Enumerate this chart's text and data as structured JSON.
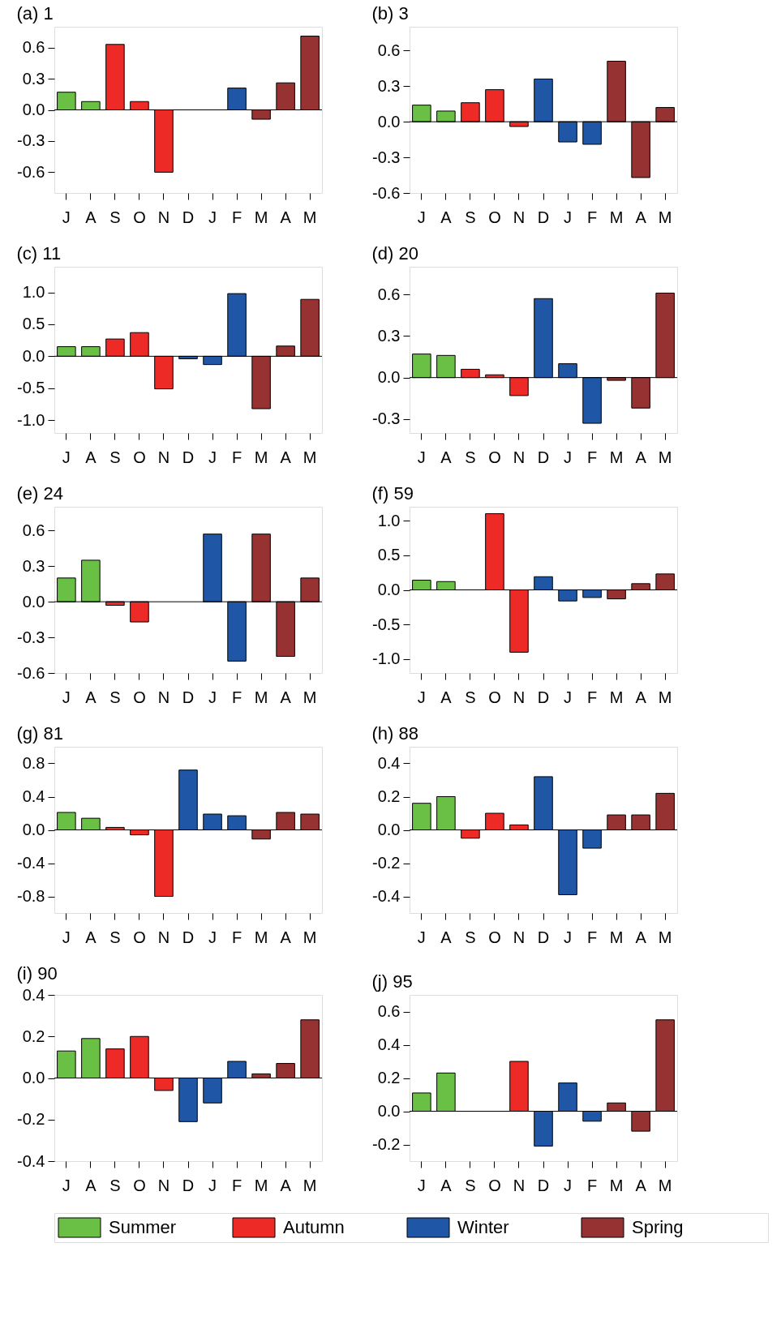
{
  "chart_data": [
    {
      "type": "bar",
      "title": "(a) 1",
      "categories": [
        "J",
        "A",
        "S",
        "O",
        "N",
        "D",
        "J",
        "F",
        "M",
        "A",
        "M"
      ],
      "ylim": [
        -0.8,
        0.8
      ],
      "yticks": [
        {
          "value": -0.6,
          "label": "-0.6"
        },
        {
          "value": -0.3,
          "label": "-0.3"
        },
        {
          "value": 0,
          "label": "0.0"
        },
        {
          "value": 0.3,
          "label": "0.3"
        },
        {
          "value": 0.6,
          "label": "0.6"
        }
      ],
      "grid": false,
      "ref_lines": [
        {
          "axis": "y",
          "value": 0
        }
      ],
      "series": [
        {
          "color": "#6abf45",
          "values": [
            0.17,
            0.08,
            null,
            null,
            null,
            null,
            null,
            null,
            null,
            null,
            null
          ]
        },
        {
          "color": "#ee2a27",
          "values": [
            null,
            null,
            0.63,
            0.08,
            -0.6,
            null,
            null,
            null,
            null,
            null,
            null
          ]
        },
        {
          "color": "#1f57a6",
          "values": [
            null,
            null,
            null,
            null,
            null,
            null,
            null,
            0.21,
            null,
            null,
            null
          ]
        },
        {
          "color": "#963232",
          "values": [
            null,
            null,
            null,
            null,
            null,
            null,
            null,
            null,
            -0.09,
            0.26,
            0.71
          ]
        }
      ]
    },
    {
      "type": "bar",
      "title": "(b) 3",
      "categories": [
        "J",
        "A",
        "S",
        "O",
        "N",
        "D",
        "J",
        "F",
        "M",
        "A",
        "M"
      ],
      "ylim": [
        -0.6,
        0.8
      ],
      "yticks": [
        {
          "value": -0.6,
          "label": "-0.6"
        },
        {
          "value": -0.3,
          "label": "-0.3"
        },
        {
          "value": 0,
          "label": "0.0"
        },
        {
          "value": 0.3,
          "label": "0.3"
        },
        {
          "value": 0.6,
          "label": "0.6"
        }
      ],
      "grid": false,
      "ref_lines": [
        {
          "axis": "y",
          "value": 0
        }
      ],
      "series": [
        {
          "color": "#6abf45",
          "values": [
            0.14,
            0.09,
            null,
            null,
            null,
            null,
            null,
            null,
            null,
            null,
            null
          ]
        },
        {
          "color": "#ee2a27",
          "values": [
            null,
            null,
            0.16,
            0.27,
            -0.04,
            null,
            null,
            null,
            null,
            null,
            null
          ]
        },
        {
          "color": "#1f57a6",
          "values": [
            null,
            null,
            null,
            null,
            null,
            0.36,
            -0.17,
            -0.19,
            null,
            null,
            null
          ]
        },
        {
          "color": "#963232",
          "values": [
            null,
            null,
            null,
            null,
            null,
            null,
            null,
            null,
            0.51,
            -0.47,
            0.12
          ]
        }
      ]
    },
    {
      "type": "bar",
      "title": "(c) 11",
      "categories": [
        "J",
        "A",
        "S",
        "O",
        "N",
        "D",
        "J",
        "F",
        "M",
        "A",
        "M"
      ],
      "ylim": [
        -1.2,
        1.4
      ],
      "yticks": [
        {
          "value": -1,
          "label": "-1.0"
        },
        {
          "value": -0.5,
          "label": "-0.5"
        },
        {
          "value": 0,
          "label": "0.0"
        },
        {
          "value": 0.5,
          "label": "0.5"
        },
        {
          "value": 1,
          "label": "1.0"
        }
      ],
      "grid": false,
      "ref_lines": [
        {
          "axis": "y",
          "value": 0
        }
      ],
      "series": [
        {
          "color": "#6abf45",
          "values": [
            0.15,
            0.15,
            null,
            null,
            null,
            null,
            null,
            null,
            null,
            null,
            null
          ]
        },
        {
          "color": "#ee2a27",
          "values": [
            null,
            null,
            0.27,
            0.37,
            -0.51,
            null,
            null,
            null,
            null,
            null,
            null
          ]
        },
        {
          "color": "#1f57a6",
          "values": [
            null,
            null,
            null,
            null,
            null,
            -0.04,
            -0.13,
            0.98,
            null,
            null,
            null
          ]
        },
        {
          "color": "#963232",
          "values": [
            null,
            null,
            null,
            null,
            null,
            null,
            null,
            null,
            -0.82,
            0.16,
            0.89
          ]
        }
      ]
    },
    {
      "type": "bar",
      "title": "(d) 20",
      "categories": [
        "J",
        "A",
        "S",
        "O",
        "N",
        "D",
        "J",
        "F",
        "M",
        "A",
        "M"
      ],
      "ylim": [
        -0.4,
        0.8
      ],
      "yticks": [
        {
          "value": -0.3,
          "label": "-0.3"
        },
        {
          "value": 0,
          "label": "0.0"
        },
        {
          "value": 0.3,
          "label": "0.3"
        },
        {
          "value": 0.6,
          "label": "0.6"
        }
      ],
      "grid": false,
      "ref_lines": [
        {
          "axis": "y",
          "value": 0
        }
      ],
      "series": [
        {
          "color": "#6abf45",
          "values": [
            0.17,
            0.16,
            null,
            null,
            null,
            null,
            null,
            null,
            null,
            null,
            null
          ]
        },
        {
          "color": "#ee2a27",
          "values": [
            null,
            null,
            0.06,
            0.02,
            -0.13,
            null,
            null,
            null,
            null,
            null,
            null
          ]
        },
        {
          "color": "#1f57a6",
          "values": [
            null,
            null,
            null,
            null,
            null,
            0.57,
            0.1,
            -0.33,
            null,
            null,
            null
          ]
        },
        {
          "color": "#963232",
          "values": [
            null,
            null,
            null,
            null,
            null,
            null,
            null,
            null,
            -0.02,
            -0.22,
            0.61
          ]
        }
      ]
    },
    {
      "type": "bar",
      "title": "(e) 24",
      "categories": [
        "J",
        "A",
        "S",
        "O",
        "N",
        "D",
        "J",
        "F",
        "M",
        "A",
        "M"
      ],
      "ylim": [
        -0.6,
        0.8
      ],
      "yticks": [
        {
          "value": -0.6,
          "label": "-0.6"
        },
        {
          "value": -0.3,
          "label": "-0.3"
        },
        {
          "value": 0,
          "label": "0.0"
        },
        {
          "value": 0.3,
          "label": "0.3"
        },
        {
          "value": 0.6,
          "label": "0.6"
        }
      ],
      "grid": false,
      "ref_lines": [
        {
          "axis": "y",
          "value": 0
        }
      ],
      "series": [
        {
          "color": "#6abf45",
          "values": [
            0.2,
            0.35,
            null,
            null,
            null,
            null,
            null,
            null,
            null,
            null,
            null
          ]
        },
        {
          "color": "#ee2a27",
          "values": [
            null,
            null,
            -0.03,
            -0.17,
            null,
            null,
            null,
            null,
            null,
            null,
            null
          ]
        },
        {
          "color": "#1f57a6",
          "values": [
            null,
            null,
            null,
            null,
            null,
            null,
            0.57,
            -0.5,
            null,
            null,
            null
          ]
        },
        {
          "color": "#963232",
          "values": [
            null,
            null,
            null,
            null,
            null,
            null,
            null,
            null,
            0.57,
            -0.46,
            0.2
          ]
        }
      ]
    },
    {
      "type": "bar",
      "title": "(f) 59",
      "categories": [
        "J",
        "A",
        "S",
        "O",
        "N",
        "D",
        "J",
        "F",
        "M",
        "A",
        "M"
      ],
      "ylim": [
        -1.2,
        1.2
      ],
      "yticks": [
        {
          "value": -1,
          "label": "-1.0"
        },
        {
          "value": -0.5,
          "label": "-0.5"
        },
        {
          "value": 0,
          "label": "0.0"
        },
        {
          "value": 0.5,
          "label": "0.5"
        },
        {
          "value": 1,
          "label": "1.0"
        }
      ],
      "grid": false,
      "ref_lines": [
        {
          "axis": "y",
          "value": 0
        }
      ],
      "series": [
        {
          "color": "#6abf45",
          "values": [
            0.14,
            0.12,
            null,
            null,
            null,
            null,
            null,
            null,
            null,
            null,
            null
          ]
        },
        {
          "color": "#ee2a27",
          "values": [
            null,
            null,
            null,
            1.1,
            -0.9,
            null,
            null,
            null,
            null,
            null,
            null
          ]
        },
        {
          "color": "#1f57a6",
          "values": [
            null,
            null,
            null,
            null,
            null,
            0.19,
            -0.16,
            -0.11,
            null,
            null,
            null
          ]
        },
        {
          "color": "#963232",
          "values": [
            null,
            null,
            null,
            null,
            null,
            null,
            null,
            null,
            -0.13,
            0.09,
            0.23
          ]
        }
      ]
    },
    {
      "type": "bar",
      "title": "(g) 81",
      "categories": [
        "J",
        "A",
        "S",
        "O",
        "N",
        "D",
        "J",
        "F",
        "M",
        "A",
        "M"
      ],
      "ylim": [
        -1.0,
        1.0
      ],
      "yticks": [
        {
          "value": -0.8,
          "label": "-0.8"
        },
        {
          "value": -0.4,
          "label": "-0.4"
        },
        {
          "value": 0,
          "label": "0.0"
        },
        {
          "value": 0.4,
          "label": "0.4"
        },
        {
          "value": 0.8,
          "label": "0.8"
        }
      ],
      "grid": false,
      "ref_lines": [
        {
          "axis": "y",
          "value": 0
        }
      ],
      "series": [
        {
          "color": "#6abf45",
          "values": [
            0.21,
            0.14,
            null,
            null,
            null,
            null,
            null,
            null,
            null,
            null,
            null
          ]
        },
        {
          "color": "#ee2a27",
          "values": [
            null,
            null,
            0.03,
            -0.06,
            -0.8,
            null,
            null,
            null,
            null,
            null,
            null
          ]
        },
        {
          "color": "#1f57a6",
          "values": [
            null,
            null,
            null,
            null,
            null,
            0.72,
            0.19,
            0.17,
            null,
            null,
            null
          ]
        },
        {
          "color": "#963232",
          "values": [
            null,
            null,
            null,
            null,
            null,
            null,
            null,
            null,
            -0.11,
            0.21,
            0.19
          ]
        }
      ]
    },
    {
      "type": "bar",
      "title": "(h) 88",
      "categories": [
        "J",
        "A",
        "S",
        "O",
        "N",
        "D",
        "J",
        "F",
        "M",
        "A",
        "M"
      ],
      "ylim": [
        -0.5,
        0.5
      ],
      "yticks": [
        {
          "value": -0.4,
          "label": "-0.4"
        },
        {
          "value": -0.2,
          "label": "-0.2"
        },
        {
          "value": 0,
          "label": "0.0"
        },
        {
          "value": 0.2,
          "label": "0.2"
        },
        {
          "value": 0.4,
          "label": "0.4"
        }
      ],
      "grid": false,
      "ref_lines": [
        {
          "axis": "y",
          "value": 0
        }
      ],
      "series": [
        {
          "color": "#6abf45",
          "values": [
            0.16,
            0.2,
            null,
            null,
            null,
            null,
            null,
            null,
            null,
            null,
            null
          ]
        },
        {
          "color": "#ee2a27",
          "values": [
            null,
            null,
            -0.05,
            0.1,
            0.03,
            null,
            null,
            null,
            null,
            null,
            null
          ]
        },
        {
          "color": "#1f57a6",
          "values": [
            null,
            null,
            null,
            null,
            null,
            0.32,
            -0.39,
            -0.11,
            null,
            null,
            null
          ]
        },
        {
          "color": "#963232",
          "values": [
            null,
            null,
            null,
            null,
            null,
            null,
            null,
            null,
            0.09,
            0.09,
            0.22
          ]
        }
      ]
    },
    {
      "type": "bar",
      "title": "(i) 90",
      "categories": [
        "J",
        "A",
        "S",
        "O",
        "N",
        "D",
        "J",
        "F",
        "M",
        "A",
        "M"
      ],
      "ylim": [
        -0.4,
        0.4
      ],
      "yticks": [
        {
          "value": -0.4,
          "label": "-0.4"
        },
        {
          "value": -0.2,
          "label": "-0.2"
        },
        {
          "value": 0,
          "label": "0.0"
        },
        {
          "value": 0.2,
          "label": "0.2"
        },
        {
          "value": 0.4,
          "label": "0.4"
        }
      ],
      "grid": false,
      "ref_lines": [
        {
          "axis": "y",
          "value": 0
        }
      ],
      "series": [
        {
          "color": "#6abf45",
          "values": [
            0.13,
            0.19,
            null,
            null,
            null,
            null,
            null,
            null,
            null,
            null,
            null
          ]
        },
        {
          "color": "#ee2a27",
          "values": [
            null,
            null,
            0.14,
            0.2,
            -0.06,
            null,
            null,
            null,
            null,
            null,
            null
          ]
        },
        {
          "color": "#1f57a6",
          "values": [
            null,
            null,
            null,
            null,
            null,
            -0.21,
            -0.12,
            0.08,
            null,
            null,
            null
          ]
        },
        {
          "color": "#963232",
          "values": [
            null,
            null,
            null,
            null,
            null,
            null,
            null,
            null,
            0.02,
            0.07,
            0.28
          ]
        }
      ]
    },
    {
      "type": "bar",
      "title": "(j) 95",
      "categories": [
        "J",
        "A",
        "S",
        "O",
        "N",
        "D",
        "J",
        "F",
        "M",
        "A",
        "M"
      ],
      "ylim": [
        -0.3,
        0.7
      ],
      "yticks": [
        {
          "value": -0.2,
          "label": "-0.2"
        },
        {
          "value": 0,
          "label": "0.0"
        },
        {
          "value": 0.2,
          "label": "0.2"
        },
        {
          "value": 0.4,
          "label": "0.4"
        },
        {
          "value": 0.6,
          "label": "0.6"
        }
      ],
      "grid": false,
      "legend": "bottom",
      "ref_lines": [
        {
          "axis": "y",
          "value": 0
        }
      ],
      "series": [
        {
          "name": "Summer",
          "color": "#6abf45",
          "values": [
            0.11,
            0.23,
            null,
            null,
            null,
            null,
            null,
            null,
            null,
            null,
            null
          ]
        },
        {
          "name": "Autumn",
          "color": "#ee2a27",
          "values": [
            null,
            null,
            null,
            null,
            0.3,
            null,
            null,
            null,
            null,
            null,
            null
          ]
        },
        {
          "name": "Winter",
          "color": "#1f57a6",
          "values": [
            null,
            null,
            null,
            null,
            null,
            -0.21,
            0.17,
            -0.06,
            null,
            null,
            null
          ]
        },
        {
          "name": "Spring",
          "color": "#963232",
          "values": [
            null,
            null,
            null,
            null,
            null,
            null,
            null,
            null,
            0.05,
            -0.12,
            0.55
          ]
        }
      ]
    }
  ]
}
